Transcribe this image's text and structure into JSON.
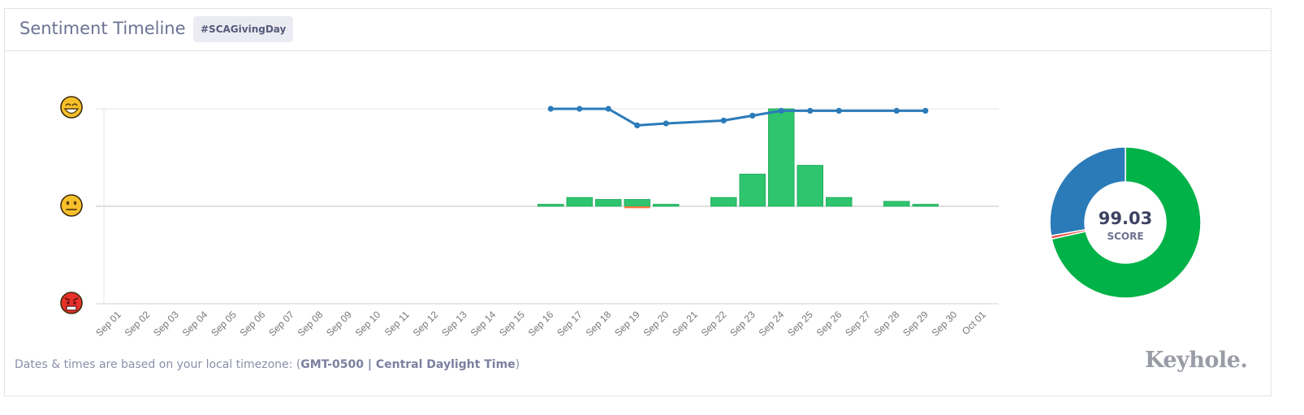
{
  "header": {
    "title": "Sentiment Timeline",
    "hashtag": "#SCAGivingDay"
  },
  "footer": {
    "prefix": "Dates & times are based on your local timezone: (",
    "timezone": "GMT-0500 | Central Daylight Time",
    "suffix": ")"
  },
  "logo": {
    "text": "Keyhole",
    "dot": "."
  },
  "colors": {
    "positive": "#2ec56e",
    "negative": "#f07a3c",
    "line": "#2b7bb9",
    "donut_positive": "#00b247",
    "donut_neutral": "#2b7bb9",
    "donut_negative": "#e8453c"
  },
  "chart_data": [
    {
      "type": "bar",
      "x_type": "date",
      "categories": [
        "Sep 01",
        "Sep 02",
        "Sep 03",
        "Sep 04",
        "Sep 05",
        "Sep 06",
        "Sep 07",
        "Sep 08",
        "Sep 09",
        "Sep 10",
        "Sep 11",
        "Sep 12",
        "Sep 13",
        "Sep 14",
        "Sep 15",
        "Sep 16",
        "Sep 17",
        "Sep 18",
        "Sep 19",
        "Sep 20",
        "Sep 21",
        "Sep 22",
        "Sep 23",
        "Sep 24",
        "Sep 25",
        "Sep 26",
        "Sep 27",
        "Sep 28",
        "Sep 29",
        "Sep 30",
        "Oct 01"
      ],
      "y_axis_icons": [
        "happy-face-icon",
        "neutral-face-icon",
        "angry-face-icon"
      ],
      "ylim": [
        -1,
        1
      ],
      "series": [
        {
          "kind": "bar-positive",
          "values": [
            0,
            0,
            0,
            0,
            0,
            0,
            0,
            0,
            0,
            0,
            0,
            0,
            0,
            0,
            0,
            0.02,
            0.09,
            0.07,
            0.07,
            0.02,
            0,
            0.09,
            0.33,
            1.0,
            0.42,
            0.09,
            0,
            0.05,
            0.02,
            0,
            0
          ]
        },
        {
          "kind": "bar-negative",
          "values": [
            0,
            0,
            0,
            0,
            0,
            0,
            0,
            0,
            0,
            0,
            0,
            0,
            0,
            0,
            0,
            0,
            0,
            0,
            -0.02,
            0,
            0,
            0,
            0,
            0,
            0,
            0,
            0,
            0,
            0,
            0,
            0
          ]
        },
        {
          "kind": "line",
          "points": [
            {
              "x": "Sep 16",
              "y": 1.0
            },
            {
              "x": "Sep 17",
              "y": 1.0
            },
            {
              "x": "Sep 18",
              "y": 1.0
            },
            {
              "x": "Sep 19",
              "y": 0.83
            },
            {
              "x": "Sep 20",
              "y": 0.85
            },
            {
              "x": "Sep 22",
              "y": 0.88
            },
            {
              "x": "Sep 23",
              "y": 0.93
            },
            {
              "x": "Sep 24",
              "y": 0.98
            },
            {
              "x": "Sep 25",
              "y": 0.98
            },
            {
              "x": "Sep 26",
              "y": 0.98
            },
            {
              "x": "Sep 28",
              "y": 0.98
            },
            {
              "x": "Sep 29",
              "y": 0.98
            }
          ]
        }
      ]
    },
    {
      "type": "pie",
      "donut": true,
      "center_value": "99.03",
      "center_label": "SCORE",
      "slices": [
        {
          "kind": "positive",
          "value": 71.5
        },
        {
          "kind": "negative",
          "value": 0.7
        },
        {
          "kind": "neutral",
          "value": 27.8
        }
      ]
    }
  ]
}
